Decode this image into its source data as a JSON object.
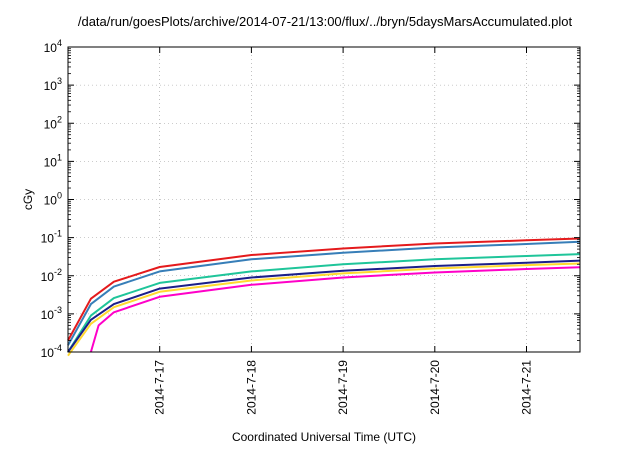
{
  "chart_data": {
    "type": "line",
    "title": "/data/run/goesPlots/archive/2014-07-21/13:00/flux/../bryn/5daysMarsAccumulated.plot",
    "xlabel": "Coordinated Universal Time (UTC)",
    "ylabel": "cGy",
    "yscale": "log",
    "ylim": [
      0.0001,
      10000
    ],
    "xlim": [
      "2014-07-16 00:00",
      "2014-07-21 14:00"
    ],
    "y_ticks": [
      {
        "value": 0.0001,
        "base": "10",
        "exp": "-4"
      },
      {
        "value": 0.001,
        "base": "10",
        "exp": "-3"
      },
      {
        "value": 0.01,
        "base": "10",
        "exp": "-2"
      },
      {
        "value": 0.1,
        "base": "10",
        "exp": "-1"
      },
      {
        "value": 1,
        "base": "10",
        "exp": "0"
      },
      {
        "value": 10,
        "base": "10",
        "exp": "1"
      },
      {
        "value": 100,
        "base": "10",
        "exp": "2"
      },
      {
        "value": 1000,
        "base": "10",
        "exp": "3"
      },
      {
        "value": 10000,
        "base": "10",
        "exp": "4"
      }
    ],
    "x_ticks": [
      "2014-7-17",
      "2014-7-18",
      "2014-7-19",
      "2014-7-20",
      "2014-7-21"
    ],
    "x_tick_dates": [
      "2014-07-17",
      "2014-07-18",
      "2014-07-19",
      "2014-07-20",
      "2014-07-21"
    ],
    "grid": true,
    "legend": "none",
    "series": [
      {
        "color": "#e41a1c",
        "x": [
          "2014-07-16 00:00",
          "2014-07-16 06:00",
          "2014-07-16 12:00",
          "2014-07-17 00:00",
          "2014-07-18 00:00",
          "2014-07-19 00:00",
          "2014-07-20 00:00",
          "2014-07-21 00:00",
          "2014-07-21 14:00"
        ],
        "y": [
          0.0002,
          0.0025,
          0.007,
          0.017,
          0.035,
          0.052,
          0.07,
          0.085,
          0.095
        ]
      },
      {
        "color": "#377eb8",
        "x": [
          "2014-07-16 00:00",
          "2014-07-16 06:00",
          "2014-07-16 12:00",
          "2014-07-17 00:00",
          "2014-07-18 00:00",
          "2014-07-19 00:00",
          "2014-07-20 00:00",
          "2014-07-21 00:00",
          "2014-07-21 14:00"
        ],
        "y": [
          0.00015,
          0.0018,
          0.0052,
          0.013,
          0.027,
          0.04,
          0.055,
          0.068,
          0.078
        ]
      },
      {
        "color": "#1fc59a",
        "x": [
          "2014-07-16 00:00",
          "2014-07-16 06:00",
          "2014-07-16 12:00",
          "2014-07-17 00:00",
          "2014-07-18 00:00",
          "2014-07-19 00:00",
          "2014-07-20 00:00",
          "2014-07-21 00:00",
          "2014-07-21 14:00"
        ],
        "y": [
          0.0001,
          0.0009,
          0.0026,
          0.0065,
          0.013,
          0.02,
          0.027,
          0.033,
          0.037
        ]
      },
      {
        "color": "#1b1f8a",
        "x": [
          "2014-07-16 00:00",
          "2014-07-16 06:00",
          "2014-07-16 12:00",
          "2014-07-17 00:00",
          "2014-07-18 00:00",
          "2014-07-19 00:00",
          "2014-07-20 00:00",
          "2014-07-21 00:00",
          "2014-07-21 14:00"
        ],
        "y": [
          0.0001,
          0.0007,
          0.0018,
          0.0046,
          0.009,
          0.0135,
          0.018,
          0.022,
          0.025
        ]
      },
      {
        "color": "#ffd92f",
        "x": [
          "2014-07-16 00:00",
          "2014-07-16 06:00",
          "2014-07-16 12:00",
          "2014-07-17 00:00",
          "2014-07-18 00:00",
          "2014-07-19 00:00",
          "2014-07-20 00:00",
          "2014-07-21 00:00",
          "2014-07-21 14:00"
        ],
        "y": [
          8e-05,
          0.00055,
          0.0015,
          0.0038,
          0.0075,
          0.0115,
          0.0155,
          0.019,
          0.021
        ]
      },
      {
        "color": "#ff00c8",
        "x": [
          "2014-07-16 06:00",
          "2014-07-16 08:00",
          "2014-07-16 12:00",
          "2014-07-17 00:00",
          "2014-07-18 00:00",
          "2014-07-19 00:00",
          "2014-07-20 00:00",
          "2014-07-21 00:00",
          "2014-07-21 14:00"
        ],
        "y": [
          0.0001,
          0.0005,
          0.0011,
          0.0028,
          0.0058,
          0.009,
          0.0122,
          0.015,
          0.0168
        ]
      }
    ]
  }
}
